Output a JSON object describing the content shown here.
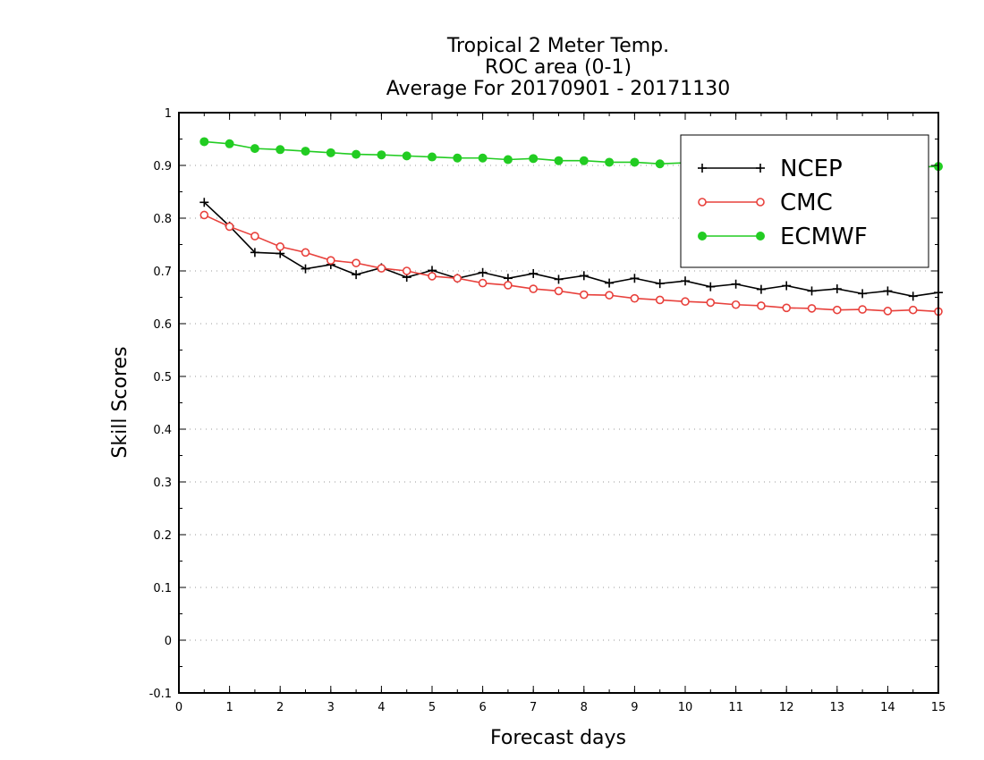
{
  "chart_data": {
    "type": "line",
    "title": [
      "Tropical 2 Meter Temp.",
      "ROC area (0-1)",
      "Average For 20170901 - 20171130"
    ],
    "xlabel": "Forecast days",
    "ylabel": "Skill Scores",
    "xlim": [
      0,
      15
    ],
    "ylim": [
      -0.1,
      1
    ],
    "x_ticks": [
      "0",
      "1",
      "2",
      "3",
      "4",
      "5",
      "6",
      "7",
      "8",
      "9",
      "10",
      "11",
      "12",
      "13",
      "14",
      "15"
    ],
    "y_ticks": [
      "-0.1",
      "0",
      "0.1",
      "0.2",
      "0.3",
      "0.4",
      "0.5",
      "0.6",
      "0.7",
      "0.8",
      "0.9",
      "1"
    ],
    "grid": "horizontal-dotted",
    "legend_position": "top-right",
    "x": [
      0.5,
      1,
      1.5,
      2,
      2.5,
      3,
      3.5,
      4,
      4.5,
      5,
      5.5,
      6,
      6.5,
      7,
      7.5,
      8,
      8.5,
      9,
      9.5,
      10,
      10.5,
      11,
      11.5,
      12,
      12.5,
      13,
      13.5,
      14,
      14.5,
      15
    ],
    "series": [
      {
        "name": "NCEP",
        "color": "#000000",
        "marker": "plus",
        "values": [
          0.83,
          0.785,
          0.735,
          0.733,
          0.704,
          0.712,
          0.693,
          0.706,
          0.688,
          0.701,
          0.686,
          0.697,
          0.686,
          0.695,
          0.684,
          0.691,
          0.677,
          0.686,
          0.676,
          0.681,
          0.67,
          0.675,
          0.665,
          0.672,
          0.662,
          0.666,
          0.657,
          0.662,
          0.652,
          0.659
        ]
      },
      {
        "name": "CMC",
        "color": "#e8413c",
        "marker": "open-circle",
        "values": [
          0.806,
          0.784,
          0.766,
          0.746,
          0.735,
          0.72,
          0.715,
          0.705,
          0.7,
          0.69,
          0.686,
          0.677,
          0.673,
          0.666,
          0.662,
          0.655,
          0.654,
          0.648,
          0.645,
          0.642,
          0.64,
          0.636,
          0.634,
          0.63,
          0.629,
          0.626,
          0.627,
          0.624,
          0.626,
          0.623
        ]
      },
      {
        "name": "ECMWF",
        "color": "#22cc22",
        "marker": "filled-circle",
        "values": [
          0.945,
          0.941,
          0.932,
          0.93,
          0.927,
          0.924,
          0.921,
          0.92,
          0.918,
          0.916,
          0.914,
          0.914,
          0.911,
          0.913,
          0.909,
          0.909,
          0.906,
          0.906,
          0.903,
          0.905,
          0.903,
          0.905,
          0.901,
          0.903,
          0.9,
          0.902,
          0.898,
          0.9,
          0.897,
          0.898
        ]
      }
    ]
  }
}
